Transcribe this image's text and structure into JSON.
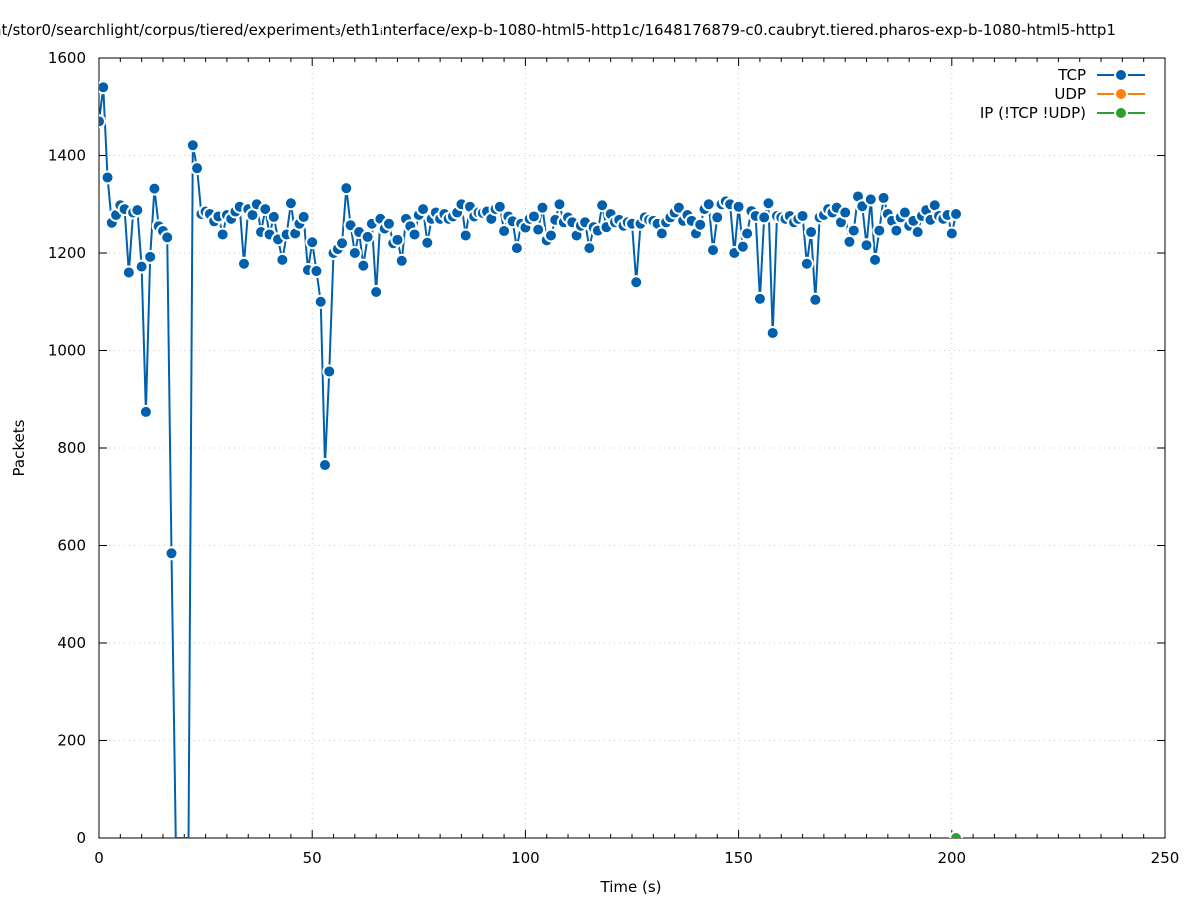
{
  "chart_data": {
    "type": "line",
    "title": "nt/stor0/searchlight/corpus/tiered/experiment₃/eth1ᵢnterface/exp-b-1080-html5-http1c/1648176879-c0.caubryt.tiered.pharos-exp-b-1080-html5-http1",
    "xlabel": "Time (s)",
    "ylabel": "Packets",
    "xlim": [
      0,
      250
    ],
    "ylim": [
      0,
      1600
    ],
    "xticks": [
      0,
      50,
      100,
      150,
      200,
      250
    ],
    "yticks": [
      0,
      200,
      400,
      600,
      800,
      1000,
      1200,
      1400,
      1600
    ],
    "x_minor_step": 5,
    "grid": true,
    "legend_position": "top-right",
    "series": [
      {
        "name": "TCP",
        "color": "#0060ad",
        "points": [
          [
            0,
            1470
          ],
          [
            1,
            1540
          ],
          [
            2,
            1355
          ],
          [
            3,
            1262
          ],
          [
            4,
            1278
          ],
          [
            5,
            1298
          ],
          [
            6,
            1290
          ],
          [
            7,
            1160
          ],
          [
            8,
            1283
          ],
          [
            9,
            1288
          ],
          [
            10,
            1172
          ],
          [
            11,
            874
          ],
          [
            12,
            1192
          ],
          [
            13,
            1332
          ],
          [
            14,
            1255
          ],
          [
            15,
            1245
          ],
          [
            16,
            1232
          ],
          [
            17,
            584
          ],
          [
            18,
            0
          ],
          [
            19,
            0
          ],
          [
            20,
            0
          ],
          [
            21,
            0
          ],
          [
            22,
            1421
          ],
          [
            23,
            1374
          ],
          [
            24,
            1280
          ],
          [
            25,
            1285
          ],
          [
            26,
            1280
          ],
          [
            27,
            1265
          ],
          [
            28,
            1275
          ],
          [
            29,
            1238
          ],
          [
            30,
            1278
          ],
          [
            31,
            1270
          ],
          [
            32,
            1285
          ],
          [
            33,
            1295
          ],
          [
            34,
            1178
          ],
          [
            35,
            1290
          ],
          [
            36,
            1278
          ],
          [
            37,
            1300
          ],
          [
            38,
            1243
          ],
          [
            39,
            1290
          ],
          [
            40,
            1238
          ],
          [
            41,
            1274
          ],
          [
            42,
            1228
          ],
          [
            43,
            1186
          ],
          [
            44,
            1238
          ],
          [
            45,
            1302
          ],
          [
            46,
            1240
          ],
          [
            47,
            1260
          ],
          [
            48,
            1274
          ],
          [
            49,
            1165
          ],
          [
            50,
            1222
          ],
          [
            51,
            1163
          ],
          [
            52,
            1100
          ],
          [
            53,
            765
          ],
          [
            54,
            957
          ],
          [
            55,
            1200
          ],
          [
            56,
            1208
          ],
          [
            57,
            1220
          ],
          [
            58,
            1333
          ],
          [
            59,
            1257
          ],
          [
            60,
            1200
          ],
          [
            61,
            1243
          ],
          [
            62,
            1174
          ],
          [
            63,
            1233
          ],
          [
            64,
            1260
          ],
          [
            65,
            1120
          ],
          [
            66,
            1270
          ],
          [
            67,
            1250
          ],
          [
            68,
            1260
          ],
          [
            69,
            1220
          ],
          [
            70,
            1227
          ],
          [
            71,
            1184
          ],
          [
            72,
            1270
          ],
          [
            73,
            1255
          ],
          [
            74,
            1238
          ],
          [
            75,
            1278
          ],
          [
            76,
            1290
          ],
          [
            77,
            1221
          ],
          [
            78,
            1270
          ],
          [
            79,
            1283
          ],
          [
            80,
            1270
          ],
          [
            81,
            1280
          ],
          [
            82,
            1270
          ],
          [
            83,
            1275
          ],
          [
            84,
            1283
          ],
          [
            85,
            1300
          ],
          [
            86,
            1236
          ],
          [
            87,
            1295
          ],
          [
            88,
            1275
          ],
          [
            89,
            1283
          ],
          [
            90,
            1282
          ],
          [
            91,
            1285
          ],
          [
            92,
            1270
          ],
          [
            93,
            1290
          ],
          [
            94,
            1295
          ],
          [
            95,
            1245
          ],
          [
            96,
            1275
          ],
          [
            97,
            1265
          ],
          [
            98,
            1210
          ],
          [
            99,
            1260
          ],
          [
            100,
            1252
          ],
          [
            101,
            1270
          ],
          [
            102,
            1275
          ],
          [
            103,
            1248
          ],
          [
            104,
            1293
          ],
          [
            105,
            1226
          ],
          [
            106,
            1236
          ],
          [
            107,
            1268
          ],
          [
            108,
            1300
          ],
          [
            109,
            1263
          ],
          [
            110,
            1273
          ],
          [
            111,
            1263
          ],
          [
            112,
            1236
          ],
          [
            113,
            1256
          ],
          [
            114,
            1263
          ],
          [
            115,
            1210
          ],
          [
            116,
            1253
          ],
          [
            117,
            1246
          ],
          [
            118,
            1298
          ],
          [
            119,
            1253
          ],
          [
            120,
            1280
          ],
          [
            121,
            1263
          ],
          [
            122,
            1268
          ],
          [
            123,
            1256
          ],
          [
            124,
            1263
          ],
          [
            125,
            1260
          ],
          [
            126,
            1140
          ],
          [
            127,
            1260
          ],
          [
            128,
            1273
          ],
          [
            129,
            1268
          ],
          [
            130,
            1266
          ],
          [
            131,
            1260
          ],
          [
            132,
            1240
          ],
          [
            133,
            1263
          ],
          [
            134,
            1273
          ],
          [
            135,
            1283
          ],
          [
            136,
            1293
          ],
          [
            137,
            1266
          ],
          [
            138,
            1278
          ],
          [
            139,
            1266
          ],
          [
            140,
            1240
          ],
          [
            141,
            1258
          ],
          [
            142,
            1290
          ],
          [
            143,
            1300
          ],
          [
            144,
            1206
          ],
          [
            145,
            1273
          ],
          [
            146,
            1300
          ],
          [
            147,
            1306
          ],
          [
            148,
            1300
          ],
          [
            149,
            1200
          ],
          [
            150,
            1295
          ],
          [
            151,
            1213
          ],
          [
            152,
            1240
          ],
          [
            153,
            1286
          ],
          [
            154,
            1276
          ],
          [
            155,
            1106
          ],
          [
            156,
            1273
          ],
          [
            157,
            1302
          ],
          [
            158,
            1036
          ],
          [
            159,
            1276
          ],
          [
            160,
            1273
          ],
          [
            161,
            1270
          ],
          [
            162,
            1276
          ],
          [
            163,
            1263
          ],
          [
            164,
            1270
          ],
          [
            165,
            1276
          ],
          [
            166,
            1178
          ],
          [
            167,
            1243
          ],
          [
            168,
            1104
          ],
          [
            169,
            1273
          ],
          [
            170,
            1278
          ],
          [
            171,
            1290
          ],
          [
            172,
            1283
          ],
          [
            173,
            1293
          ],
          [
            174,
            1263
          ],
          [
            175,
            1283
          ],
          [
            176,
            1223
          ],
          [
            177,
            1246
          ],
          [
            178,
            1316
          ],
          [
            179,
            1296
          ],
          [
            180,
            1216
          ],
          [
            181,
            1310
          ],
          [
            182,
            1186
          ],
          [
            183,
            1246
          ],
          [
            184,
            1313
          ],
          [
            185,
            1280
          ],
          [
            186,
            1266
          ],
          [
            187,
            1246
          ],
          [
            188,
            1273
          ],
          [
            189,
            1283
          ],
          [
            190,
            1256
          ],
          [
            191,
            1266
          ],
          [
            192,
            1243
          ],
          [
            193,
            1276
          ],
          [
            194,
            1288
          ],
          [
            195,
            1268
          ],
          [
            196,
            1298
          ],
          [
            197,
            1276
          ],
          [
            198,
            1270
          ],
          [
            199,
            1278
          ],
          [
            200,
            1240
          ],
          [
            201,
            1280
          ]
        ]
      },
      {
        "name": "UDP",
        "color": "#ff7f0e",
        "points": []
      },
      {
        "name": "IP (!TCP  !UDP)",
        "color": "#2ca02c",
        "points": [
          [
            201,
            0
          ]
        ]
      }
    ]
  }
}
